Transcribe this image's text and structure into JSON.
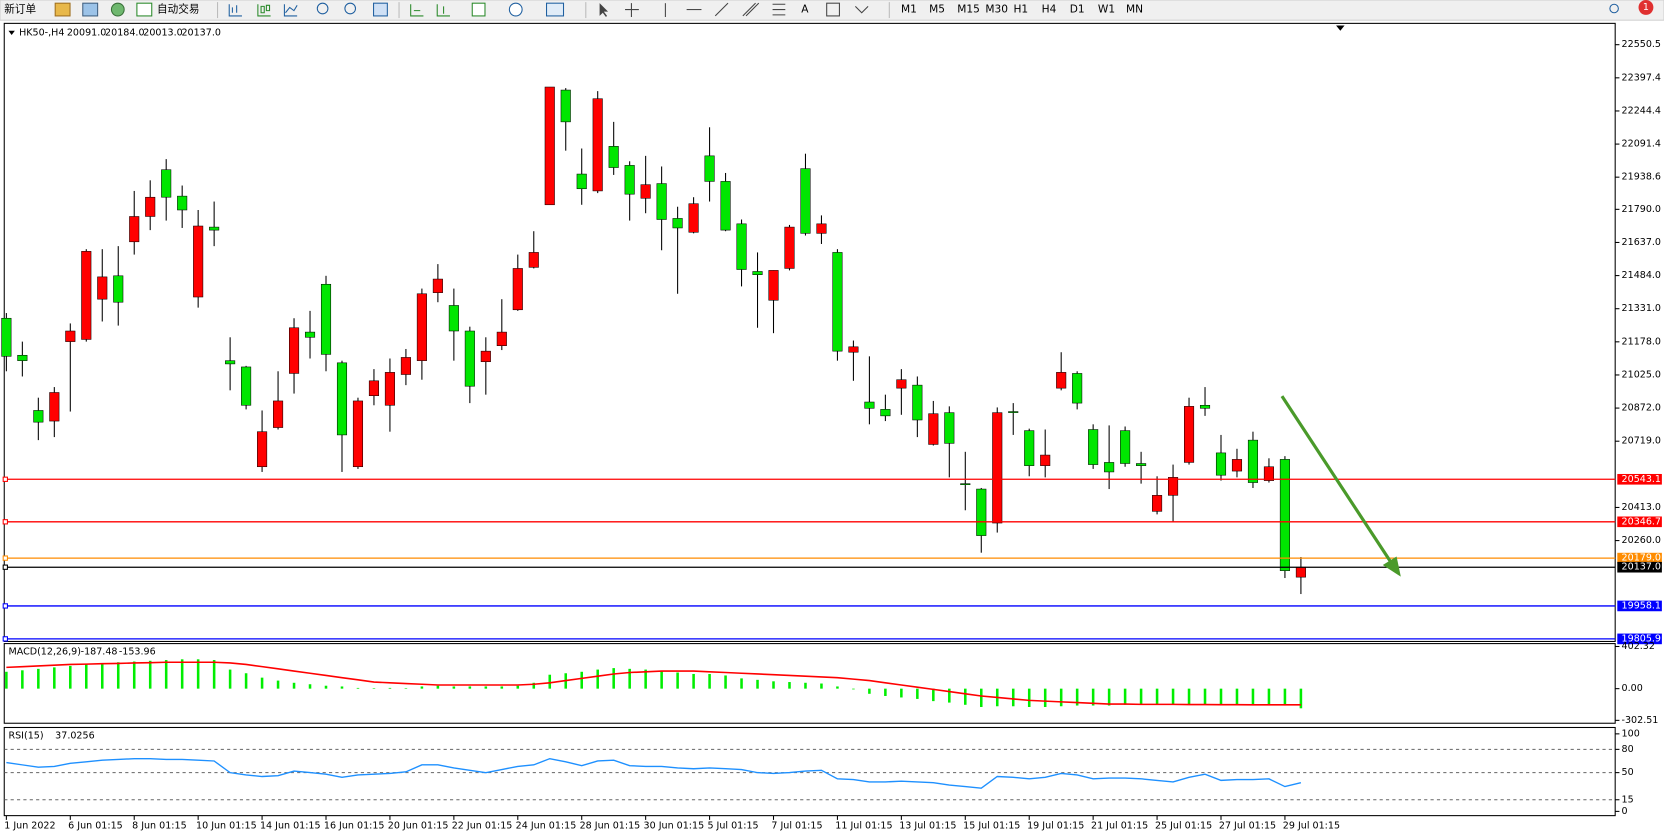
{
  "toolbar": {
    "new_order": "新订单",
    "auto_trading": "自动交易",
    "text_tool": "A",
    "notification": "1",
    "timeframes": [
      "M1",
      "M5",
      "M15",
      "M30",
      "H1",
      "H4",
      "D1",
      "W1",
      "MN"
    ]
  },
  "chart_data": [
    {
      "type": "candlestick",
      "header": {
        "symbol": "HK50-,H4",
        "ohlc": [
          "20091.0",
          "20184.0",
          "20013.0",
          "20137.0"
        ]
      },
      "open": [
        21287,
        21116,
        20861,
        20812,
        21179,
        21189,
        21375,
        21483,
        21640,
        21757,
        21973,
        21851,
        21385,
        21708,
        21091,
        21062,
        20601,
        20782,
        21032,
        21223,
        21444,
        21081,
        20601,
        20929,
        20885,
        21027,
        21091,
        21405,
        21346,
        21228,
        21086,
        21160,
        21326,
        21522,
        21811,
        22341,
        21953,
        21875,
        22081,
        21993,
        21841,
        21909,
        21748,
        21684,
        22037,
        21919,
        21723,
        21503,
        21370,
        21517,
        21978,
        21679,
        21591,
        21130,
        20900,
        20866,
        20964,
        20978,
        20704,
        20851,
        20523,
        20498,
        20341,
        20856,
        20768,
        20606,
        20964,
        21032,
        20773,
        20621,
        20768,
        20616,
        20395,
        20469,
        20621,
        20885,
        20665,
        20581,
        20724,
        20537,
        20635,
        20091
      ],
      "high": [
        21311,
        21179,
        20920,
        20969,
        21263,
        21606,
        21606,
        21620,
        21875,
        21924,
        22022,
        21900,
        21787,
        21826,
        21199,
        21067,
        20861,
        21042,
        21287,
        21321,
        21483,
        21091,
        20920,
        21052,
        21101,
        21145,
        21424,
        21537,
        21424,
        21248,
        21199,
        21375,
        21581,
        21689,
        22355,
        22350,
        22071,
        22336,
        22194,
        22012,
        22037,
        21988,
        21802,
        21846,
        22169,
        21958,
        21743,
        21591,
        21508,
        21718,
        22047,
        21762,
        21606,
        21184,
        21111,
        20934,
        21052,
        21018,
        20905,
        20880,
        20670,
        20503,
        20875,
        20895,
        20777,
        20773,
        21130,
        21042,
        20797,
        20792,
        20787,
        20670,
        20557,
        20611,
        20920,
        20969,
        20748,
        20684,
        20763,
        20640,
        20650,
        20184
      ],
      "low": [
        21042,
        21018,
        20724,
        20738,
        20856,
        21179,
        21272,
        21253,
        21581,
        21694,
        21738,
        21704,
        21336,
        21620,
        20954,
        20866,
        20577,
        20773,
        20939,
        21101,
        21042,
        20577,
        20591,
        20885,
        20763,
        20978,
        21003,
        21361,
        21091,
        20895,
        20934,
        21140,
        21321,
        21517,
        21811,
        22061,
        21811,
        21865,
        21949,
        21738,
        21772,
        21601,
        21400,
        21679,
        21826,
        21689,
        21434,
        21243,
        21218,
        21508,
        21669,
        21630,
        21091,
        20998,
        20797,
        20812,
        20841,
        20738,
        20699,
        20552,
        20400,
        20204,
        20297,
        20748,
        20557,
        20552,
        20954,
        20866,
        20591,
        20498,
        20601,
        20523,
        20381,
        20346,
        20611,
        20836,
        20537,
        20552,
        20503,
        20528,
        20087,
        20013
      ],
      "close": [
        21111,
        21091,
        20807,
        20944,
        21228,
        21596,
        21478,
        21361,
        21757,
        21846,
        21846,
        21787,
        21713,
        21694,
        21076,
        20885,
        20763,
        20905,
        21243,
        21199,
        21120,
        20748,
        20905,
        20998,
        21037,
        21106,
        21400,
        21468,
        21228,
        20973,
        21135,
        21223,
        21517,
        21591,
        22355,
        22194,
        21885,
        22301,
        21983,
        21860,
        21904,
        21743,
        21704,
        21816,
        21919,
        21694,
        21512,
        21488,
        21508,
        21708,
        21679,
        21723,
        21135,
        21155,
        20871,
        20836,
        21003,
        20817,
        20846,
        20709,
        20518,
        20283,
        20851,
        20851,
        20606,
        20655,
        21037,
        20895,
        20611,
        20577,
        20616,
        20606,
        20469,
        20552,
        20880,
        20871,
        20562,
        20635,
        20528,
        20601,
        20121,
        20137
      ],
      "up_color": "#ff0000",
      "down_color": "#00e600",
      "ylim": [
        19794,
        22649
      ],
      "yticks": [
        22550.5,
        22397.4,
        22244.4,
        22091.4,
        21938.6,
        {
          "value": 21790,
          "label": "21790.0"
        },
        {
          "value": 21637,
          "label": "21637.0"
        },
        {
          "value": 21484,
          "label": "21484.0"
        },
        {
          "value": 21331,
          "label": "21331.0"
        },
        {
          "value": 21178,
          "label": "21178.0"
        },
        {
          "value": 21025,
          "label": "21025.0"
        },
        {
          "value": 20872,
          "label": "20872.0"
        },
        {
          "value": 20719,
          "label": "20719.0"
        },
        {
          "value": 20413,
          "label": "20413.0"
        },
        {
          "value": 20260,
          "label": "20260.0"
        }
      ],
      "levels": [
        {
          "value": 20543.1,
          "color": "#ff0000"
        },
        {
          "value": 20346.7,
          "color": "#ff0000"
        },
        {
          "value": 20179,
          "label": "20179.0",
          "color": "#ff8c00"
        },
        {
          "value": 20137,
          "label": "20137.0",
          "color": "#000000"
        },
        {
          "value": 19958.1,
          "color": "#0000ff"
        },
        {
          "value": 19805.9,
          "color": "#0000ff"
        }
      ],
      "x_labels": [
        "1 Jun 2022",
        "6 Jun 01:15",
        "8 Jun 01:15",
        "10 Jun 01:15",
        "14 Jun 01:15",
        "16 Jun 01:15",
        "20 Jun 01:15",
        "22 Jun 01:15",
        "24 Jun 01:15",
        "28 Jun 01:15",
        "30 Jun 01:15",
        "5 Jul 01:15",
        "7 Jul 01:15",
        "11 Jul 01:15",
        "13 Jul 01:15",
        "15 Jul 01:15",
        "19 Jul 01:15",
        "21 Jul 01:15",
        "25 Jul 01:15",
        "27 Jul 01:15",
        "29 Jul 01:15"
      ]
    },
    {
      "type": "macd",
      "title": "MACD(12,26,9)",
      "histogram": [
        161,
        175,
        189,
        203,
        217,
        231,
        245,
        252,
        259,
        266,
        273,
        280,
        280,
        273,
        182,
        147,
        105,
        77,
        56,
        42,
        28,
        21,
        7,
        4,
        7,
        4,
        21,
        28,
        21,
        21,
        21,
        21,
        28,
        56,
        133,
        147,
        161,
        182,
        196,
        189,
        182,
        168,
        154,
        140,
        140,
        126,
        98,
        84,
        70,
        63,
        56,
        49,
        21,
        -7,
        -49,
        -70,
        -84,
        -98,
        -119,
        -133,
        -154,
        -175,
        -168,
        -168,
        -175,
        -175,
        -168,
        -161,
        -161,
        -161,
        -154,
        -154,
        -154,
        -154,
        -147,
        -147,
        -147,
        -147,
        -147,
        -147,
        -161,
        -187.48
      ],
      "signal": [
        203,
        210,
        217,
        224,
        231,
        234,
        238,
        241,
        245,
        248,
        252,
        252,
        252,
        252,
        245,
        231,
        210,
        189,
        168,
        147,
        126,
        105,
        84,
        63,
        56,
        49,
        42,
        35,
        35,
        35,
        35,
        35,
        35,
        42,
        56,
        77,
        98,
        119,
        140,
        154,
        161,
        168,
        168,
        168,
        161,
        154,
        147,
        140,
        133,
        126,
        119,
        112,
        105,
        91,
        77,
        56,
        35,
        14,
        -7,
        -28,
        -49,
        -70,
        -84,
        -98,
        -112,
        -119,
        -126,
        -133,
        -140,
        -147,
        -147,
        -150,
        -150,
        -150,
        -152,
        -152,
        -153,
        -153,
        -154,
        -154,
        -154,
        -153.96
      ],
      "hist_color": "#00ee00",
      "signal_color": "#ff0000",
      "ylim": [
        -330,
        430
      ],
      "yticks": [
        402.32,
        {
          "value": 0,
          "label": "0.00"
        },
        -302.51
      ]
    },
    {
      "type": "rsi",
      "title": "RSI(15)",
      "values": [
        63,
        60,
        57,
        58,
        62,
        64,
        66,
        67,
        68,
        68,
        67,
        67,
        66,
        65,
        50,
        47,
        45,
        46,
        52,
        50,
        48,
        44,
        47,
        48,
        49,
        51,
        60,
        60,
        56,
        53,
        50,
        54,
        58,
        60,
        68,
        64,
        59,
        65,
        66,
        59,
        58,
        58,
        56,
        55,
        56,
        55,
        54,
        50,
        49,
        50,
        52,
        53,
        42,
        41,
        38,
        38,
        39,
        38,
        37,
        34,
        32,
        30,
        45,
        44,
        42,
        44,
        49,
        47,
        42,
        43,
        43,
        42,
        40,
        38,
        44,
        48,
        40,
        41,
        41,
        42,
        32,
        37.0256
      ],
      "color": "#1e90ff",
      "ylim": [
        0,
        100
      ],
      "yticks": [
        100,
        80,
        50,
        15,
        0
      ],
      "levels": [
        80,
        50,
        15
      ]
    }
  ]
}
